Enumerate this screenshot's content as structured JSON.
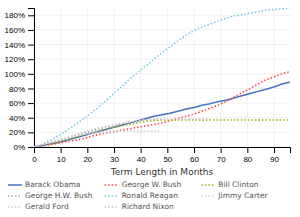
{
  "chart_data": {
    "type": "line",
    "xlabel": "Term Length in Months",
    "xlim": [
      0,
      96
    ],
    "ylim": [
      0,
      1.9
    ],
    "xticks": [
      0,
      10,
      20,
      30,
      40,
      50,
      60,
      70,
      80,
      90
    ],
    "yticks": [
      {
        "value": 0.0,
        "label": "0%"
      },
      {
        "value": 0.2,
        "label": "20%"
      },
      {
        "value": 0.4,
        "label": "40%"
      },
      {
        "value": 0.6,
        "label": "60%"
      },
      {
        "value": 0.8,
        "label": "80%"
      },
      {
        "value": 1.0,
        "label": "100%"
      },
      {
        "value": 1.2,
        "label": "120%"
      },
      {
        "value": 1.4,
        "label": "140%"
      },
      {
        "value": 1.6,
        "label": "160%"
      },
      {
        "value": 1.8,
        "label": "180%"
      }
    ],
    "grid": true,
    "legend": "bottom",
    "series": [
      {
        "name": "Barack Obama",
        "color": "#4472C4",
        "line_style": "solid",
        "x": [
          0,
          3,
          6,
          9,
          12,
          15,
          18,
          21,
          24,
          27,
          30,
          33,
          36,
          39,
          42,
          45,
          48,
          51,
          54,
          57,
          60,
          63,
          66,
          69,
          72,
          75,
          78,
          81,
          84,
          87,
          90,
          93,
          96
        ],
        "values": [
          0,
          0.02,
          0.04,
          0.06,
          0.09,
          0.12,
          0.15,
          0.18,
          0.21,
          0.24,
          0.27,
          0.3,
          0.33,
          0.36,
          0.39,
          0.42,
          0.44,
          0.46,
          0.49,
          0.52,
          0.54,
          0.57,
          0.59,
          0.62,
          0.64,
          0.67,
          0.7,
          0.73,
          0.76,
          0.79,
          0.82,
          0.86,
          0.89
        ]
      },
      {
        "name": "George W. Bush",
        "color": "#FF4040",
        "line_style": "dotted",
        "x": [
          0,
          3,
          6,
          9,
          12,
          15,
          18,
          21,
          24,
          27,
          30,
          33,
          36,
          39,
          42,
          45,
          48,
          51,
          54,
          57,
          60,
          63,
          66,
          69,
          72,
          75,
          78,
          81,
          84,
          87,
          90,
          93,
          96
        ],
        "values": [
          0,
          0.01,
          0.03,
          0.05,
          0.07,
          0.09,
          0.11,
          0.14,
          0.17,
          0.19,
          0.21,
          0.23,
          0.25,
          0.27,
          0.29,
          0.31,
          0.33,
          0.36,
          0.39,
          0.42,
          0.45,
          0.49,
          0.53,
          0.57,
          0.62,
          0.68,
          0.74,
          0.8,
          0.86,
          0.92,
          0.96,
          1.0,
          1.03
        ]
      },
      {
        "name": "Bill Clinton",
        "color": "#A8A800",
        "line_style": "dotted",
        "x": [
          0,
          3,
          6,
          9,
          12,
          15,
          18,
          21,
          24,
          27,
          30,
          33,
          36,
          39,
          42,
          45,
          48,
          51,
          54,
          57,
          60,
          63,
          66,
          69,
          72,
          75,
          78,
          81,
          84,
          87,
          90,
          93,
          96
        ],
        "values": [
          0,
          0.02,
          0.04,
          0.07,
          0.1,
          0.13,
          0.16,
          0.19,
          0.22,
          0.25,
          0.27,
          0.29,
          0.31,
          0.33,
          0.35,
          0.36,
          0.37,
          0.37,
          0.37,
          0.37,
          0.37,
          0.37,
          0.37,
          0.37,
          0.37,
          0.37,
          0.37,
          0.37,
          0.37,
          0.37,
          0.37,
          0.37,
          0.37
        ]
      },
      {
        "name": "George H.W. Bush",
        "color": "#B0B0B0",
        "line_style": "dotted",
        "x": [
          0,
          3,
          6,
          9,
          12,
          15,
          18,
          21,
          24,
          27,
          30,
          33,
          36,
          39,
          42,
          45,
          48
        ],
        "values": [
          0,
          0.03,
          0.06,
          0.09,
          0.12,
          0.15,
          0.18,
          0.21,
          0.24,
          0.27,
          0.3,
          0.32,
          0.34,
          0.36,
          0.37,
          0.38,
          0.38
        ]
      },
      {
        "name": "Ronald Reagan",
        "color": "#70C8E8",
        "line_style": "dotted",
        "x": [
          0,
          3,
          6,
          9,
          12,
          15,
          18,
          21,
          24,
          27,
          30,
          33,
          36,
          39,
          42,
          45,
          48,
          51,
          54,
          57,
          60,
          63,
          66,
          69,
          72,
          75,
          78,
          81,
          84,
          87,
          90,
          93,
          96
        ],
        "values": [
          0,
          0.04,
          0.09,
          0.15,
          0.22,
          0.29,
          0.37,
          0.45,
          0.54,
          0.63,
          0.73,
          0.83,
          0.93,
          1.02,
          1.11,
          1.2,
          1.29,
          1.37,
          1.45,
          1.53,
          1.59,
          1.64,
          1.68,
          1.72,
          1.76,
          1.79,
          1.81,
          1.83,
          1.85,
          1.87,
          1.88,
          1.89,
          1.9
        ]
      },
      {
        "name": "Jimmy Carter",
        "color": "#C8C8C8",
        "line_style": "dotted",
        "x": [
          0,
          3,
          6,
          9,
          12,
          15,
          18,
          21,
          24,
          27,
          30,
          33,
          36,
          39,
          42,
          45,
          48
        ],
        "values": [
          0,
          0.03,
          0.06,
          0.09,
          0.12,
          0.15,
          0.17,
          0.19,
          0.2,
          0.21,
          0.22,
          0.22,
          0.22,
          0.22,
          0.22,
          0.22,
          0.22
        ]
      },
      {
        "name": "Gerald Ford",
        "color": "#C8C8C8",
        "line_style": "dotted",
        "x": [
          0,
          3,
          6,
          9,
          12,
          15,
          18,
          21,
          24,
          27,
          30
        ],
        "values": [
          0,
          0.03,
          0.06,
          0.09,
          0.12,
          0.15,
          0.17,
          0.18,
          0.19,
          0.19,
          0.2
        ]
      },
      {
        "name": "Richard Nixon",
        "color": "#C8C8C8",
        "line_style": "dotted",
        "x": [
          0,
          3,
          6,
          9,
          12,
          15,
          18,
          21,
          24,
          27,
          30,
          33,
          36,
          39,
          42,
          45,
          48,
          51,
          54,
          57,
          60,
          63,
          66
        ],
        "values": [
          0,
          0.03,
          0.06,
          0.09,
          0.12,
          0.16,
          0.2,
          0.23,
          0.26,
          0.28,
          0.3,
          0.32,
          0.34,
          0.36,
          0.37,
          0.38,
          0.38,
          0.38,
          0.38,
          0.38,
          0.38,
          0.38,
          0.38
        ]
      }
    ]
  }
}
